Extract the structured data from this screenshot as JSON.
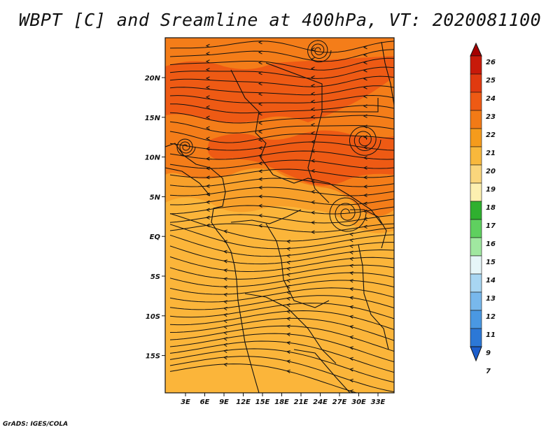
{
  "title": "WBPT [C] and Sreamline at 400hPa, VT: 2020081100",
  "footer": "GrADS: IGES/COLA",
  "map": {
    "lon_labels": [
      "3E",
      "6E",
      "9E",
      "12E",
      "15E",
      "18E",
      "21E",
      "24E",
      "27E",
      "30E",
      "33E"
    ],
    "lat_labels": [
      "20N",
      "15N",
      "10N",
      "5N",
      "EQ",
      "5S",
      "10S",
      "15S"
    ]
  },
  "colorbar": {
    "levels": [
      "26",
      "25",
      "24",
      "23",
      "22",
      "21",
      "20",
      "19",
      "18",
      "17",
      "16",
      "15",
      "14",
      "13",
      "12",
      "11",
      "9",
      "7"
    ],
    "colors": [
      "#a50000",
      "#c81a0a",
      "#e03a10",
      "#ee5a14",
      "#f27a16",
      "#f59b1c",
      "#f8b83c",
      "#fad67c",
      "#fdf0b0",
      "#2fb02f",
      "#5fd05f",
      "#a0e8a0",
      "#e6f6f8",
      "#a8d6f2",
      "#78b8ec",
      "#4a98e2",
      "#2c78d6",
      "#1c5ecc"
    ]
  },
  "field_colors": {
    "level_20_21": "#fbb53a",
    "level_21_22": "#f8a02a",
    "level_22_23": "#f47d19",
    "level_23_24": "#ee5a14",
    "streamline": "#111111"
  }
}
